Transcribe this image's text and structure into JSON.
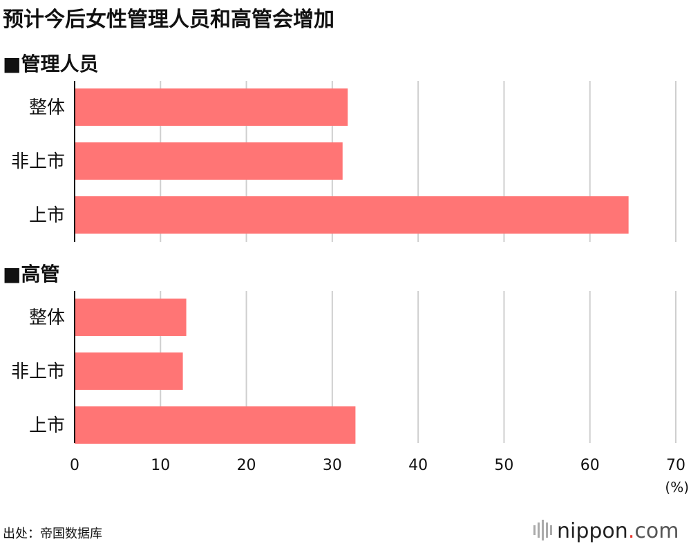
{
  "chart_data": {
    "type": "bar",
    "orientation": "horizontal",
    "title": "预计今后女性管理人员和高管会增加",
    "unit_label": "(%)",
    "xlim": [
      0,
      70
    ],
    "xticks": [
      0,
      10,
      20,
      30,
      40,
      50,
      60,
      70
    ],
    "grid": true,
    "bar_color": "#ff7575",
    "panels": [
      {
        "section_label": "■管理人员",
        "categories": [
          "整体",
          "非上市",
          "上市"
        ],
        "values": [
          31.8,
          31.2,
          64.5
        ]
      },
      {
        "section_label": "■高管",
        "categories": [
          "整体",
          "非上市",
          "上市"
        ],
        "values": [
          13.0,
          12.6,
          32.7
        ]
      }
    ]
  },
  "footer": {
    "source": "出处：帝国数据库",
    "logo_main": "nippon",
    "logo_dot": ".",
    "logo_tail": "com"
  }
}
